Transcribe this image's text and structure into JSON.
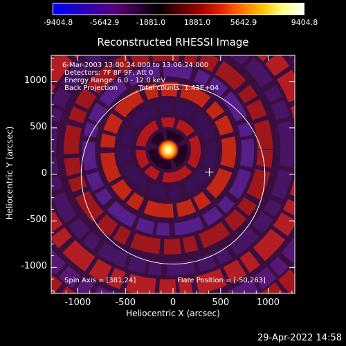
{
  "colorbar": {
    "ticks": [
      "-9404.8",
      "-5642.9",
      "-1881.0",
      "1881.0",
      "5642.9",
      "9404.8"
    ],
    "colors": [
      "#0000ff",
      "#1a00c8",
      "#3a00a0",
      "#5a0078",
      "#300040",
      "#000000",
      "#500000",
      "#a00000",
      "#e02000",
      "#ff7000",
      "#ffc000",
      "#ffff80",
      "#ffffff"
    ]
  },
  "chart_data": {
    "type": "heatmap",
    "title": "Reconstructed RHESSI Image",
    "xlabel": "Heliocentric X (arcsec)",
    "ylabel": "Heliocentric Y (arcsec)",
    "xlim": [
      -1280,
      1280
    ],
    "ylim": [
      -1280,
      1280
    ],
    "xticks": [
      "-1000",
      "-500",
      "0",
      "500",
      "1000"
    ],
    "yticks": [
      "1000",
      "500",
      "0",
      "-500",
      "-1000"
    ],
    "xtick_values": [
      -1000,
      -500,
      0,
      500,
      1000
    ],
    "ytick_values": [
      1000,
      500,
      0,
      -500,
      -1000
    ],
    "source_center": [
      -50,
      263
    ],
    "solar_disk_radius": 965,
    "crosshair": [
      381,
      24
    ],
    "value_range": [
      -9404.8,
      9404.8
    ],
    "annotations": {
      "time_range": "6-Mar-2003 13:00:24.000 to 13:06:24.000",
      "detectors": "Detectors: 7F 8F 9F, Att 0",
      "energy_range": "Energy Range: 6.0 - 12.0 keV",
      "method": "Back Projection",
      "total_counts": "Total counts: 1.43E+04",
      "spin_axis": "Spin Axis = [381,24]",
      "flare_position": "Flare Position = [-50,263]"
    }
  },
  "footer": {
    "timestamp": "29-Apr-2022 14:58"
  }
}
